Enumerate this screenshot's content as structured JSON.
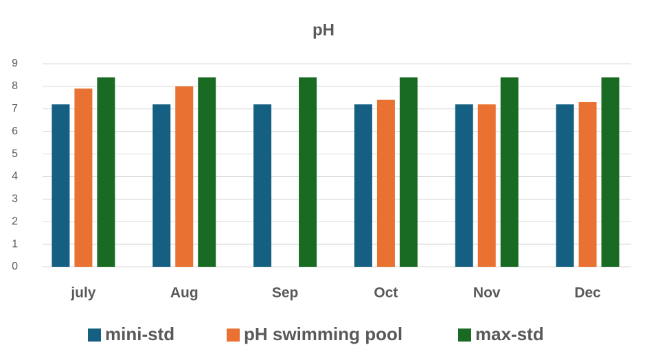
{
  "chart_data": {
    "type": "bar",
    "title": "pH",
    "categories": [
      "july",
      "Aug",
      "Sep",
      "Oct",
      "Nov",
      "Dec"
    ],
    "series": [
      {
        "name": "mini-std",
        "color": "#156082",
        "values": [
          7.2,
          7.2,
          7.2,
          7.2,
          7.2,
          7.2
        ]
      },
      {
        "name": "pH swimming pool",
        "color": "#e97132",
        "values": [
          7.9,
          8.0,
          null,
          7.4,
          7.2,
          7.3
        ]
      },
      {
        "name": "max-std",
        "color": "#196b24",
        "values": [
          8.4,
          8.4,
          8.4,
          8.4,
          8.4,
          8.4
        ]
      }
    ],
    "ylim": [
      0,
      9
    ],
    "yticks": [
      0,
      1,
      2,
      3,
      4,
      5,
      6,
      7,
      8,
      9
    ],
    "grid": true,
    "legend": "bottom"
  }
}
